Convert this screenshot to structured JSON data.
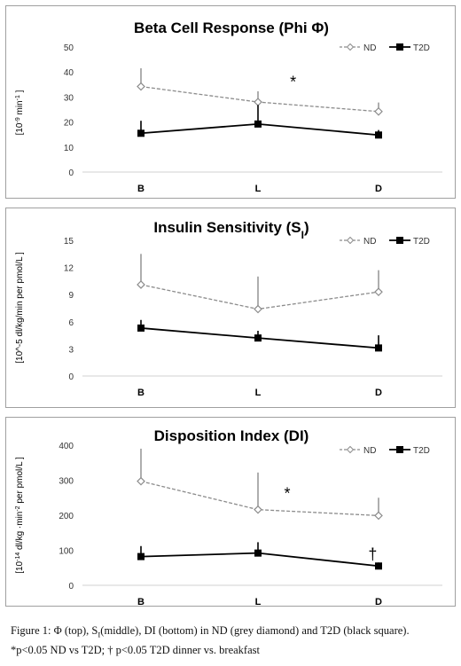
{
  "chart_data": [
    {
      "type": "line",
      "title": "Beta Cell Response (Phi Φ)",
      "title_parts": [
        {
          "text": "Beta Cell Response (Phi Φ)",
          "style": "normal"
        }
      ],
      "ylabel_parts": [
        {
          "text": "[10",
          "style": "normal"
        },
        {
          "text": "-9",
          "style": "sup"
        },
        {
          "text": " min",
          "style": "normal"
        },
        {
          "text": "-1",
          "style": "sup"
        },
        {
          "text": " ]",
          "style": "normal"
        }
      ],
      "categories": [
        "B",
        "L",
        "D"
      ],
      "ylim": [
        0,
        50
      ],
      "yticks": [
        "0",
        "10",
        "20",
        "30",
        "40",
        "50"
      ],
      "series": [
        {
          "name": "ND",
          "values": [
            34.2,
            28.0,
            24.2
          ],
          "error_up": [
            41.5,
            32.3,
            27.8
          ],
          "color": "#8c8c8c",
          "dashed": true,
          "marker": "diamond"
        },
        {
          "name": "T2D",
          "values": [
            15.5,
            19.2,
            14.8
          ],
          "error_up": [
            20.5,
            26.8,
            16.8
          ],
          "color": "#000000",
          "dashed": false,
          "marker": "square"
        }
      ],
      "annotations": [
        {
          "text": "*",
          "category": "L",
          "offset": 0.3,
          "y": 36
        }
      ]
    },
    {
      "type": "line",
      "title": "Insulin Sensitivity (SI)",
      "title_parts": [
        {
          "text": "Insulin Sensitivity (S",
          "style": "normal"
        },
        {
          "text": "I",
          "style": "sub"
        },
        {
          "text": ")",
          "style": "normal"
        }
      ],
      "ylabel_parts": [
        {
          "text": "[10^-5 dl/kg/min per pmol/L ]",
          "style": "normal"
        }
      ],
      "categories": [
        "B",
        "L",
        "D"
      ],
      "ylim": [
        0,
        15
      ],
      "yticks": [
        "0",
        "3",
        "6",
        "9",
        "12",
        "15"
      ],
      "series": [
        {
          "name": "ND",
          "values": [
            10.1,
            7.4,
            9.3
          ],
          "error_up": [
            13.5,
            11.0,
            11.7
          ],
          "color": "#8c8c8c",
          "dashed": true,
          "marker": "diamond"
        },
        {
          "name": "T2D",
          "values": [
            5.3,
            4.2,
            3.1
          ],
          "error_up": [
            6.2,
            5.0,
            4.5
          ],
          "color": "#000000",
          "dashed": false,
          "marker": "square"
        }
      ],
      "annotations": []
    },
    {
      "type": "line",
      "title": "Disposition Index (DI)",
      "title_parts": [
        {
          "text": "Disposition Index (DI)",
          "style": "normal"
        }
      ],
      "ylabel_parts": [
        {
          "text": "[10",
          "style": "normal"
        },
        {
          "text": "-14",
          "style": "sup"
        },
        {
          "text": " dl/kg ·min",
          "style": "normal"
        },
        {
          "text": "-2",
          "style": "sup"
        },
        {
          "text": " per pmol/L ]",
          "style": "normal"
        }
      ],
      "categories": [
        "B",
        "L",
        "D"
      ],
      "ylim": [
        0,
        400
      ],
      "yticks": [
        "0",
        "100",
        "200",
        "300",
        "400"
      ],
      "series": [
        {
          "name": "ND",
          "values": [
            297,
            216,
            199
          ],
          "error_up": [
            390,
            322,
            250
          ],
          "color": "#8c8c8c",
          "dashed": true,
          "marker": "diamond"
        },
        {
          "name": "T2D",
          "values": [
            82,
            92,
            55
          ],
          "error_up": [
            112,
            123,
            65
          ],
          "color": "#000000",
          "dashed": false,
          "marker": "square"
        }
      ],
      "annotations": [
        {
          "text": "*",
          "category": "L",
          "offset": 0.25,
          "y": 262
        },
        {
          "text": "†",
          "category": "D",
          "offset": -0.05,
          "y": 88
        }
      ]
    }
  ],
  "caption": {
    "line1_parts": [
      {
        "text": "Figure 1: Φ (top), S",
        "style": "normal"
      },
      {
        "text": "I",
        "style": "sub"
      },
      {
        "text": "(middle), DI (bottom) in ND (grey diamond) and T2D (black square).",
        "style": "normal"
      }
    ],
    "line2": "*p<0.05 ND vs T2D; † p<0.05 T2D dinner vs. breakfast"
  }
}
